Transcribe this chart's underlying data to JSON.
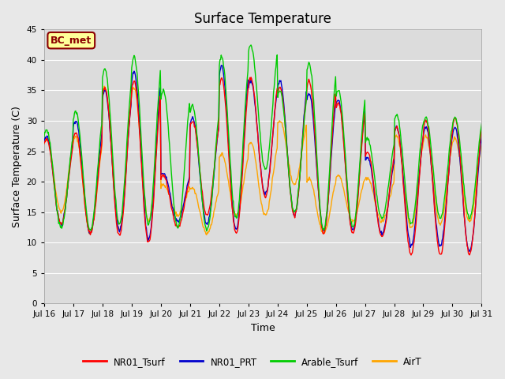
{
  "title": "Surface Temperature",
  "xlabel": "Time",
  "ylabel": "Surface Temperature (C)",
  "ylim": [
    0,
    45
  ],
  "yticks": [
    0,
    5,
    10,
    15,
    20,
    25,
    30,
    35,
    40,
    45
  ],
  "annotation": "BC_met",
  "annotation_color": "#8B0000",
  "annotation_bg": "#FFFF99",
  "legend_entries": [
    "NR01_Tsurf",
    "NR01_PRT",
    "Arable_Tsurf",
    "AirT"
  ],
  "line_colors": [
    "#FF0000",
    "#0000CD",
    "#00CC00",
    "#FFA500"
  ],
  "line_width": 1.0,
  "bg_color": "#E8E8E8",
  "plot_bg_color": "#DCDCDC",
  "grid_color": "#FFFFFF",
  "xtick_labels": [
    "Jul 16",
    "Jul 17",
    "Jul 18",
    "Jul 19",
    "Jul 20",
    "Jul 21",
    "Jul 22",
    "Jul 23",
    "Jul 24",
    "Jul 25",
    "Jul 26",
    "Jul 27",
    "Jul 28",
    "Jul 29",
    "Jul 30",
    "Jul 31"
  ],
  "n_days": 15,
  "points_per_day": 48,
  "NR01_Tsurf_daily_min": [
    13.0,
    11.5,
    11.0,
    10.0,
    12.5,
    14.5,
    11.5,
    17.5,
    14.5,
    11.5,
    11.5,
    11.0,
    8.0,
    8.0,
    8.0
  ],
  "NR01_Tsurf_daily_max": [
    27.0,
    28.0,
    35.5,
    36.5,
    21.0,
    30.0,
    37.0,
    37.0,
    35.5,
    36.5,
    33.0,
    25.0,
    29.0,
    30.0,
    30.5
  ],
  "NR01_PRT_daily_min": [
    13.0,
    11.5,
    12.0,
    10.5,
    13.5,
    13.0,
    12.0,
    18.0,
    14.5,
    12.0,
    12.0,
    11.5,
    9.5,
    9.5,
    8.5
  ],
  "NR01_PRT_daily_max": [
    27.5,
    30.0,
    35.0,
    38.0,
    21.5,
    30.5,
    39.0,
    36.5,
    36.5,
    34.5,
    33.5,
    24.0,
    29.0,
    29.0,
    29.0
  ],
  "Arable_Tsurf_daily_min": [
    12.5,
    12.0,
    13.0,
    13.0,
    12.5,
    12.0,
    14.0,
    22.0,
    15.0,
    12.0,
    12.5,
    14.0,
    13.0,
    14.0,
    14.0
  ],
  "Arable_Tsurf_daily_max": [
    28.5,
    31.5,
    38.5,
    40.5,
    35.0,
    32.5,
    40.5,
    42.5,
    35.0,
    39.5,
    35.0,
    27.0,
    31.0,
    30.5,
    30.5
  ],
  "AirT_daily_min": [
    15.0,
    11.5,
    12.0,
    13.5,
    14.5,
    11.5,
    14.5,
    14.5,
    19.5,
    11.5,
    13.5,
    13.5,
    12.5,
    13.0,
    13.5
  ],
  "AirT_daily_max": [
    27.0,
    27.5,
    35.5,
    35.5,
    19.5,
    19.0,
    24.5,
    26.5,
    30.0,
    20.5,
    21.0,
    20.5,
    27.5,
    27.5,
    27.0
  ]
}
